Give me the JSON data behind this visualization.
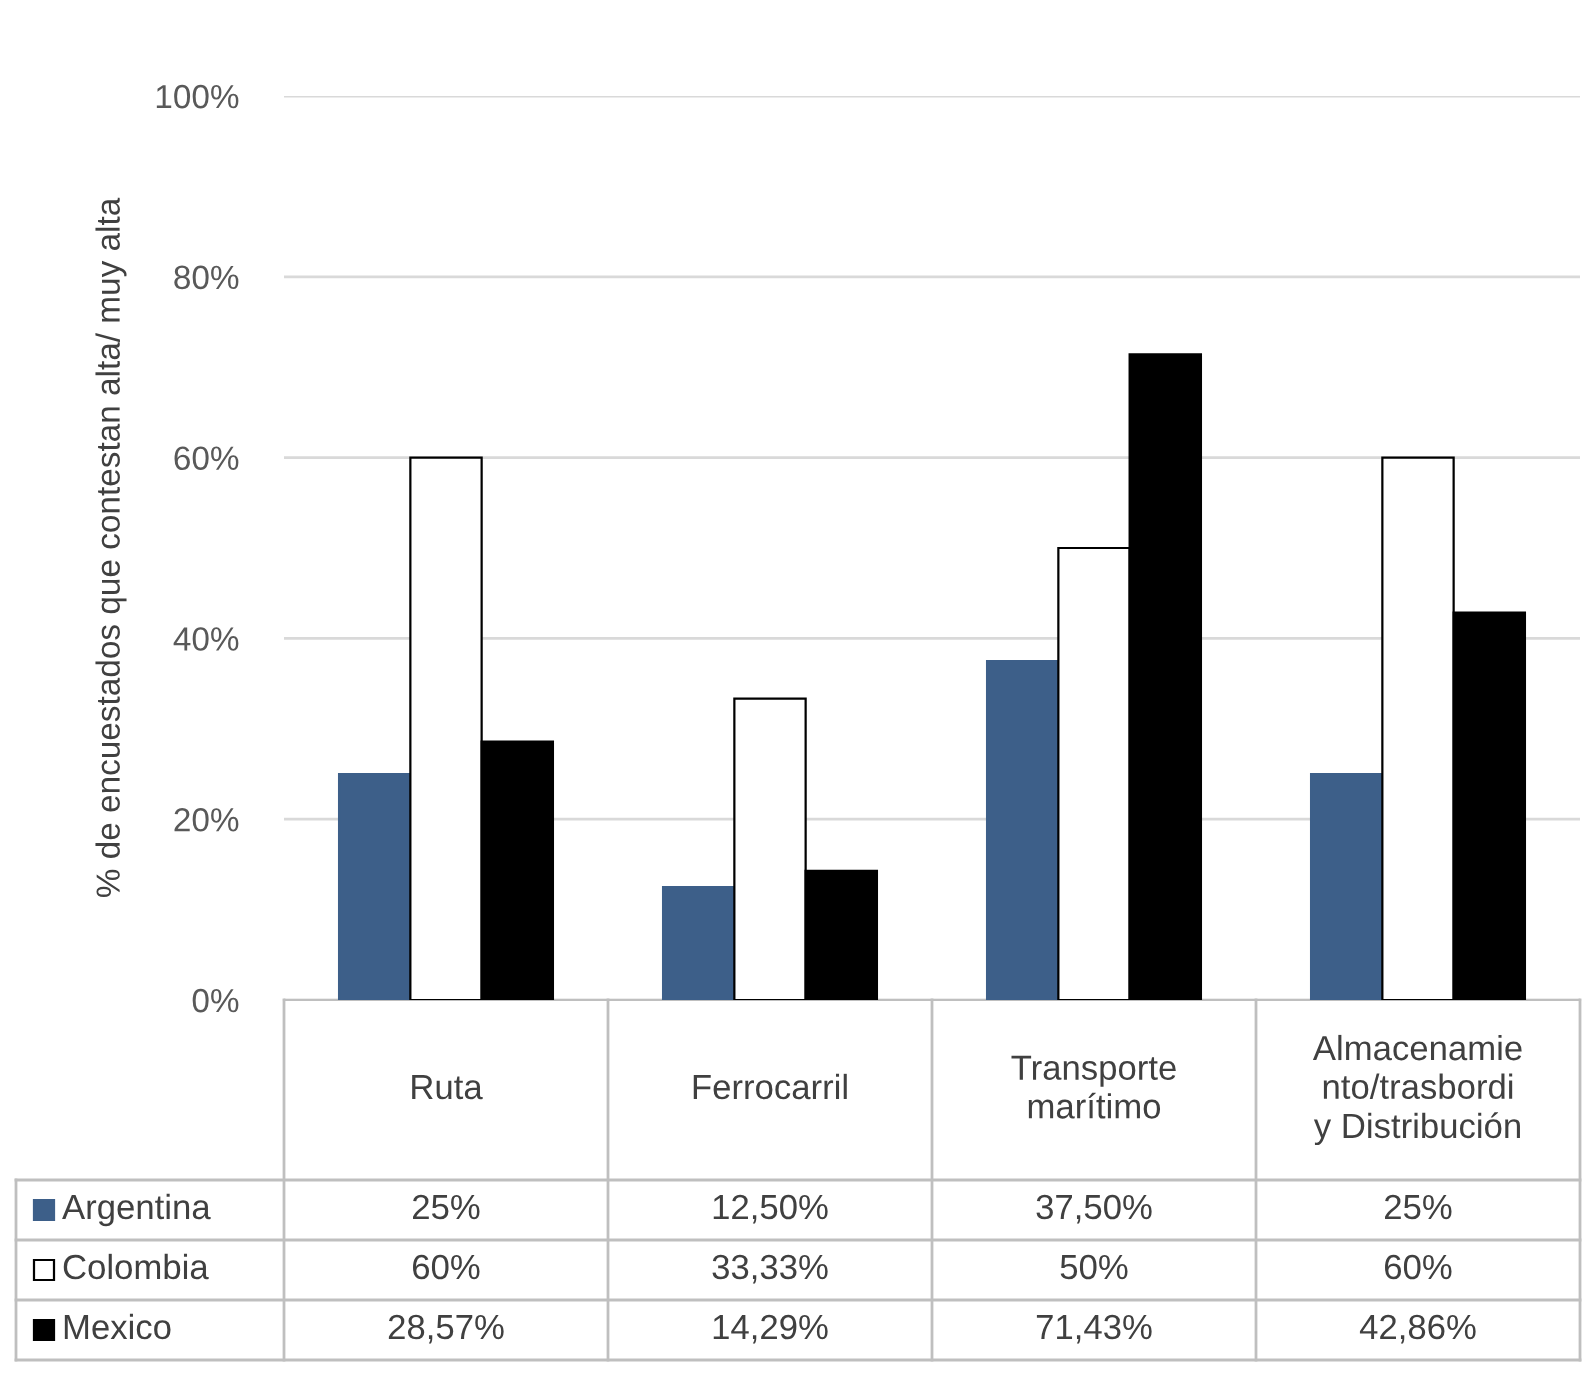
{
  "chart_data": {
    "type": "bar",
    "categories": [
      "Ruta",
      "Ferrocarril",
      "Transporte\nmarítimo",
      "Almacenamie\nnto/trasbordi\ny Distribución"
    ],
    "ylabel": "% de encuestados que contestan alta/ muy alta",
    "series": [
      {
        "name": "Argentina",
        "color": "#3d5f89",
        "values": [
          25,
          12.5,
          37.5,
          25
        ],
        "value_labels": [
          "25%",
          "12,50%",
          "37,50%",
          "25%"
        ]
      },
      {
        "name": "Colombia",
        "color": "#ffffff",
        "values": [
          60,
          33.33,
          50,
          60
        ],
        "value_labels": [
          "60%",
          "33,33%",
          "50%",
          "60%"
        ]
      },
      {
        "name": "Mexico",
        "color": "#000000",
        "values": [
          28.57,
          14.29,
          71.43,
          42.86
        ],
        "value_labels": [
          "28,57%",
          "14,29%",
          "71,43%",
          "42,86%"
        ]
      }
    ],
    "ylim": [
      0,
      100
    ],
    "yticks": [
      {
        "value": 0,
        "label": "0%"
      },
      {
        "value": 20,
        "label": "20%"
      },
      {
        "value": 40,
        "label": "40%"
      },
      {
        "value": 60,
        "label": "60%"
      },
      {
        "value": 80,
        "label": "80%"
      },
      {
        "value": 100,
        "label": "100%"
      }
    ],
    "grid": "y",
    "legend": "bottom left"
  }
}
